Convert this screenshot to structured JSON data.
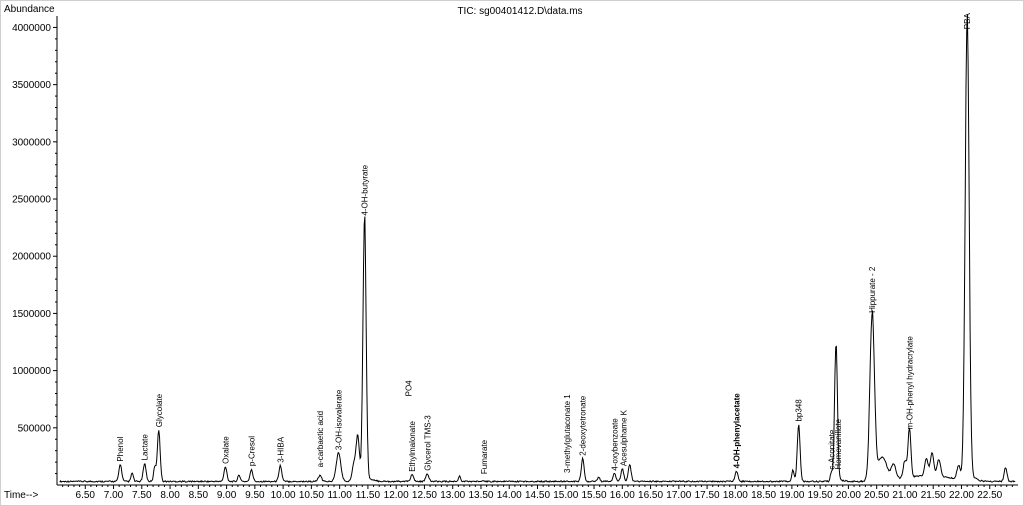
{
  "chart_data": {
    "type": "line",
    "title": "TIC: sg00401412.D\\data.ms",
    "ylabel": "Abundance",
    "xlabel": "Time-->",
    "xlim": [
      6.0,
      23.0
    ],
    "ylim": [
      0,
      4100000
    ],
    "x_ticks": [
      6.5,
      7.0,
      7.5,
      8.0,
      8.5,
      9.0,
      9.5,
      10.0,
      10.5,
      11.0,
      11.5,
      12.0,
      12.5,
      13.0,
      13.5,
      14.0,
      14.5,
      15.0,
      15.5,
      16.0,
      16.5,
      17.0,
      17.5,
      18.0,
      18.5,
      19.0,
      19.5,
      20.0,
      20.5,
      21.0,
      21.5,
      22.0,
      22.5
    ],
    "x_tick_labels": [
      "6.50",
      "7.00",
      "7.50",
      "8.00",
      "8.50",
      "9.00",
      "9.50",
      "10.00",
      "10.50",
      "11.00",
      "11.50",
      "12.00",
      "12.50",
      "13.00",
      "13.50",
      "14.00",
      "14.50",
      "15.00",
      "15.50",
      "16.00",
      "16.50",
      "17.00",
      "17.50",
      "18.00",
      "18.50",
      "19.00",
      "19.50",
      "20.00",
      "20.50",
      "21.00",
      "21.50",
      "22.00",
      "22.50"
    ],
    "y_ticks": [
      500000,
      1000000,
      1500000,
      2000000,
      2500000,
      3000000,
      3500000,
      4000000
    ],
    "y_tick_labels": [
      "500000",
      "1000000",
      "1500000",
      "2000000",
      "2500000",
      "3000000",
      "3500000",
      "4000000"
    ],
    "baseline": 25000,
    "peaks": [
      {
        "x": 7.12,
        "y": 150000,
        "w": 0.025
      },
      {
        "x": 7.33,
        "y": 75000,
        "w": 0.02
      },
      {
        "x": 7.55,
        "y": 160000,
        "w": 0.025
      },
      {
        "x": 7.73,
        "y": 130000,
        "w": 0.02
      },
      {
        "x": 7.8,
        "y": 450000,
        "w": 0.025
      },
      {
        "x": 8.98,
        "y": 130000,
        "w": 0.025
      },
      {
        "x": 9.22,
        "y": 60000,
        "w": 0.02
      },
      {
        "x": 9.44,
        "y": 100000,
        "w": 0.025
      },
      {
        "x": 9.95,
        "y": 140000,
        "w": 0.025
      },
      {
        "x": 10.65,
        "y": 50000,
        "w": 0.03
      },
      {
        "x": 10.98,
        "y": 250000,
        "w": 0.04
      },
      {
        "x": 11.25,
        "y": 150000,
        "w": 0.03
      },
      {
        "x": 11.32,
        "y": 400000,
        "w": 0.03
      },
      {
        "x": 11.44,
        "y": 2300000,
        "w": 0.028
      },
      {
        "x": 12.28,
        "y": 60000,
        "w": 0.025
      },
      {
        "x": 12.55,
        "y": 70000,
        "w": 0.025
      },
      {
        "x": 13.12,
        "y": 45000,
        "w": 0.02
      },
      {
        "x": 15.3,
        "y": 200000,
        "w": 0.025
      },
      {
        "x": 15.58,
        "y": 40000,
        "w": 0.02
      },
      {
        "x": 15.86,
        "y": 70000,
        "w": 0.025
      },
      {
        "x": 16.0,
        "y": 110000,
        "w": 0.025
      },
      {
        "x": 16.13,
        "y": 150000,
        "w": 0.025
      },
      {
        "x": 18.02,
        "y": 90000,
        "w": 0.025
      },
      {
        "x": 19.02,
        "y": 100000,
        "w": 0.02
      },
      {
        "x": 19.12,
        "y": 500000,
        "w": 0.025
      },
      {
        "x": 19.7,
        "y": 80000,
        "w": 0.02
      },
      {
        "x": 19.78,
        "y": 1200000,
        "w": 0.025
      },
      {
        "x": 20.42,
        "y": 1450000,
        "w": 0.04
      },
      {
        "x": 20.6,
        "y": 200000,
        "w": 0.08
      },
      {
        "x": 20.8,
        "y": 130000,
        "w": 0.04
      },
      {
        "x": 21.0,
        "y": 150000,
        "w": 0.03
      },
      {
        "x": 21.08,
        "y": 430000,
        "w": 0.025
      },
      {
        "x": 21.38,
        "y": 150000,
        "w": 0.03
      },
      {
        "x": 21.48,
        "y": 200000,
        "w": 0.03
      },
      {
        "x": 21.6,
        "y": 150000,
        "w": 0.03
      },
      {
        "x": 21.95,
        "y": 120000,
        "w": 0.03
      },
      {
        "x": 22.1,
        "y": 4000000,
        "w": 0.035
      },
      {
        "x": 22.78,
        "y": 120000,
        "w": 0.025
      }
    ],
    "annotations": [
      {
        "text": "Phenol",
        "x": 7.12,
        "y": 170000,
        "bold": false
      },
      {
        "text": "Lactate",
        "x": 7.55,
        "y": 180000,
        "bold": false
      },
      {
        "text": "Glycolate",
        "x": 7.8,
        "y": 470000,
        "bold": false
      },
      {
        "text": "Oxalate",
        "x": 8.98,
        "y": 150000,
        "bold": false
      },
      {
        "text": "p-Cresol",
        "x": 9.44,
        "y": 130000,
        "bold": false
      },
      {
        "text": "3-HIBA",
        "x": 9.95,
        "y": 160000,
        "bold": false
      },
      {
        "text": "a-carbaetic acid",
        "x": 10.65,
        "y": 120000,
        "bold": false
      },
      {
        "text": "3-OH-isovalerate",
        "x": 10.98,
        "y": 270000,
        "bold": false
      },
      {
        "text": "4-OH-butyrate",
        "x": 11.44,
        "y": 2320000,
        "bold": false
      },
      {
        "text": "PO4",
        "x": 12.22,
        "y": 740000,
        "bold": false
      },
      {
        "text": "Ethylmalonate",
        "x": 12.28,
        "y": 80000,
        "bold": false
      },
      {
        "text": "Glycerol TMS-3",
        "x": 12.55,
        "y": 90000,
        "bold": false
      },
      {
        "text": "Fumarate",
        "x": 13.55,
        "y": 60000,
        "bold": false
      },
      {
        "text": "3-methylglutaconate 1",
        "x": 15.02,
        "y": 70000,
        "bold": false
      },
      {
        "text": "2-deoxytetronate",
        "x": 15.3,
        "y": 220000,
        "bold": false
      },
      {
        "text": "4-oxybenzoate",
        "x": 15.86,
        "y": 90000,
        "bold": false
      },
      {
        "text": "Acesulphame K",
        "x": 16.02,
        "y": 130000,
        "bold": false
      },
      {
        "text": "4-OH-phenylacetate",
        "x": 18.02,
        "y": 110000,
        "bold": true
      },
      {
        "text": "bp348",
        "x": 19.12,
        "y": 520000,
        "bold": false
      },
      {
        "text": "c-Aconitate",
        "x": 19.7,
        "y": 100000,
        "bold": false
      },
      {
        "text": "Homovanillate",
        "x": 19.82,
        "y": 100000,
        "bold": false
      },
      {
        "text": "Hippurate - 2",
        "x": 20.42,
        "y": 1470000,
        "bold": false
      },
      {
        "text": "m-OH-phenyl hydracrylate",
        "x": 21.08,
        "y": 450000,
        "bold": false
      },
      {
        "text": "PBA",
        "x": 22.1,
        "y": 3950000,
        "bold": false
      }
    ]
  },
  "colors": {
    "trace": "#000000",
    "axis_label": "#1f3fbf"
  }
}
